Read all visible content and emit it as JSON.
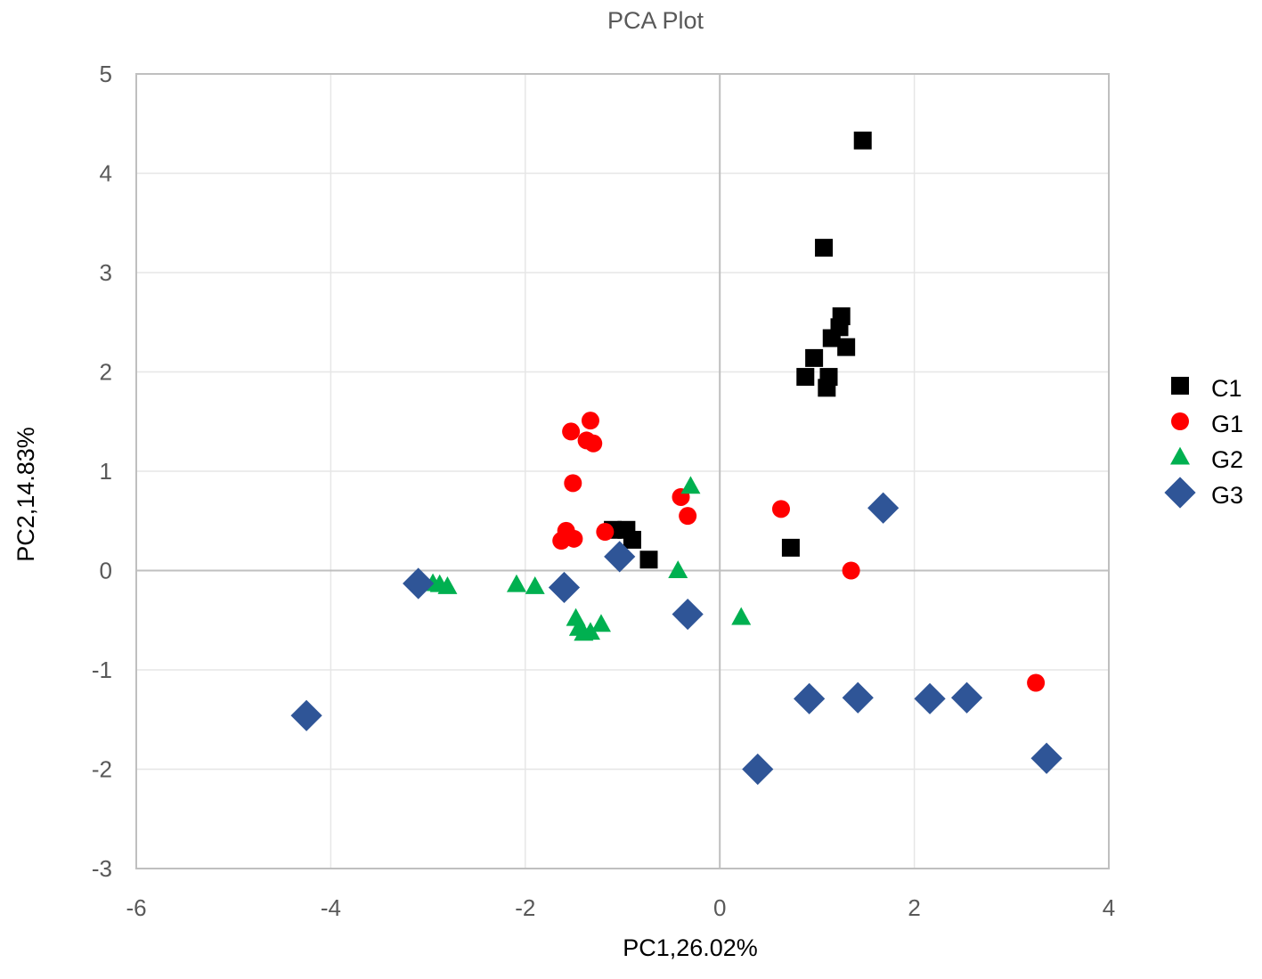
{
  "chart_data": {
    "type": "scatter",
    "title": "PCA Plot",
    "xlabel": "PC1,26.02%",
    "ylabel": "PC2,14.83%",
    "xlim": [
      -6,
      4
    ],
    "ylim": [
      -3,
      5
    ],
    "xticks": [
      -6,
      -4,
      -2,
      0,
      2,
      4
    ],
    "yticks": [
      -3,
      -2,
      -1,
      0,
      1,
      2,
      3,
      4,
      5
    ],
    "grid": true,
    "legend_position": "right",
    "series": [
      {
        "name": "C1",
        "marker": "square",
        "color": "#000000",
        "points": [
          {
            "x": 1.47,
            "y": 4.33
          },
          {
            "x": 1.07,
            "y": 3.25
          },
          {
            "x": 1.25,
            "y": 2.56
          },
          {
            "x": 1.23,
            "y": 2.45
          },
          {
            "x": 1.15,
            "y": 2.34
          },
          {
            "x": 1.3,
            "y": 2.25
          },
          {
            "x": 0.97,
            "y": 2.14
          },
          {
            "x": 0.88,
            "y": 1.95
          },
          {
            "x": 1.12,
            "y": 1.95
          },
          {
            "x": 1.1,
            "y": 1.84
          },
          {
            "x": -1.1,
            "y": 0.41
          },
          {
            "x": -0.96,
            "y": 0.41
          },
          {
            "x": -0.9,
            "y": 0.31
          },
          {
            "x": -0.73,
            "y": 0.11
          },
          {
            "x": 0.73,
            "y": 0.23
          }
        ]
      },
      {
        "name": "G1",
        "marker": "circle",
        "color": "#ff0000",
        "points": [
          {
            "x": -1.33,
            "y": 1.51
          },
          {
            "x": -1.53,
            "y": 1.4
          },
          {
            "x": -1.37,
            "y": 1.31
          },
          {
            "x": -1.3,
            "y": 1.28
          },
          {
            "x": -1.51,
            "y": 0.88
          },
          {
            "x": -1.58,
            "y": 0.4
          },
          {
            "x": -1.63,
            "y": 0.3
          },
          {
            "x": -1.5,
            "y": 0.32
          },
          {
            "x": -1.18,
            "y": 0.39
          },
          {
            "x": -0.4,
            "y": 0.74
          },
          {
            "x": -0.33,
            "y": 0.55
          },
          {
            "x": 0.63,
            "y": 0.62
          },
          {
            "x": 1.35,
            "y": 0.0
          },
          {
            "x": 3.25,
            "y": -1.13
          }
        ]
      },
      {
        "name": "G2",
        "marker": "triangle",
        "color": "#00b050",
        "points": [
          {
            "x": -0.3,
            "y": 0.85
          },
          {
            "x": -0.43,
            "y": 0.0
          },
          {
            "x": 0.22,
            "y": -0.47
          },
          {
            "x": -2.95,
            "y": -0.13
          },
          {
            "x": -2.88,
            "y": -0.14
          },
          {
            "x": -2.8,
            "y": -0.16
          },
          {
            "x": -2.09,
            "y": -0.14
          },
          {
            "x": -1.9,
            "y": -0.16
          },
          {
            "x": -1.48,
            "y": -0.48
          },
          {
            "x": -1.45,
            "y": -0.58
          },
          {
            "x": -1.4,
            "y": -0.63
          },
          {
            "x": -1.33,
            "y": -0.62
          },
          {
            "x": -1.22,
            "y": -0.54
          }
        ]
      },
      {
        "name": "G3",
        "marker": "diamond",
        "color": "#2f5597",
        "points": [
          {
            "x": -4.25,
            "y": -1.46
          },
          {
            "x": -3.1,
            "y": -0.13
          },
          {
            "x": -1.6,
            "y": -0.17
          },
          {
            "x": -1.03,
            "y": 0.14
          },
          {
            "x": -0.33,
            "y": -0.44
          },
          {
            "x": 1.68,
            "y": 0.63
          },
          {
            "x": 0.39,
            "y": -2.0
          },
          {
            "x": 0.92,
            "y": -1.29
          },
          {
            "x": 1.42,
            "y": -1.28
          },
          {
            "x": 2.16,
            "y": -1.29
          },
          {
            "x": 2.54,
            "y": -1.28
          },
          {
            "x": 3.36,
            "y": -1.89
          }
        ]
      }
    ]
  }
}
